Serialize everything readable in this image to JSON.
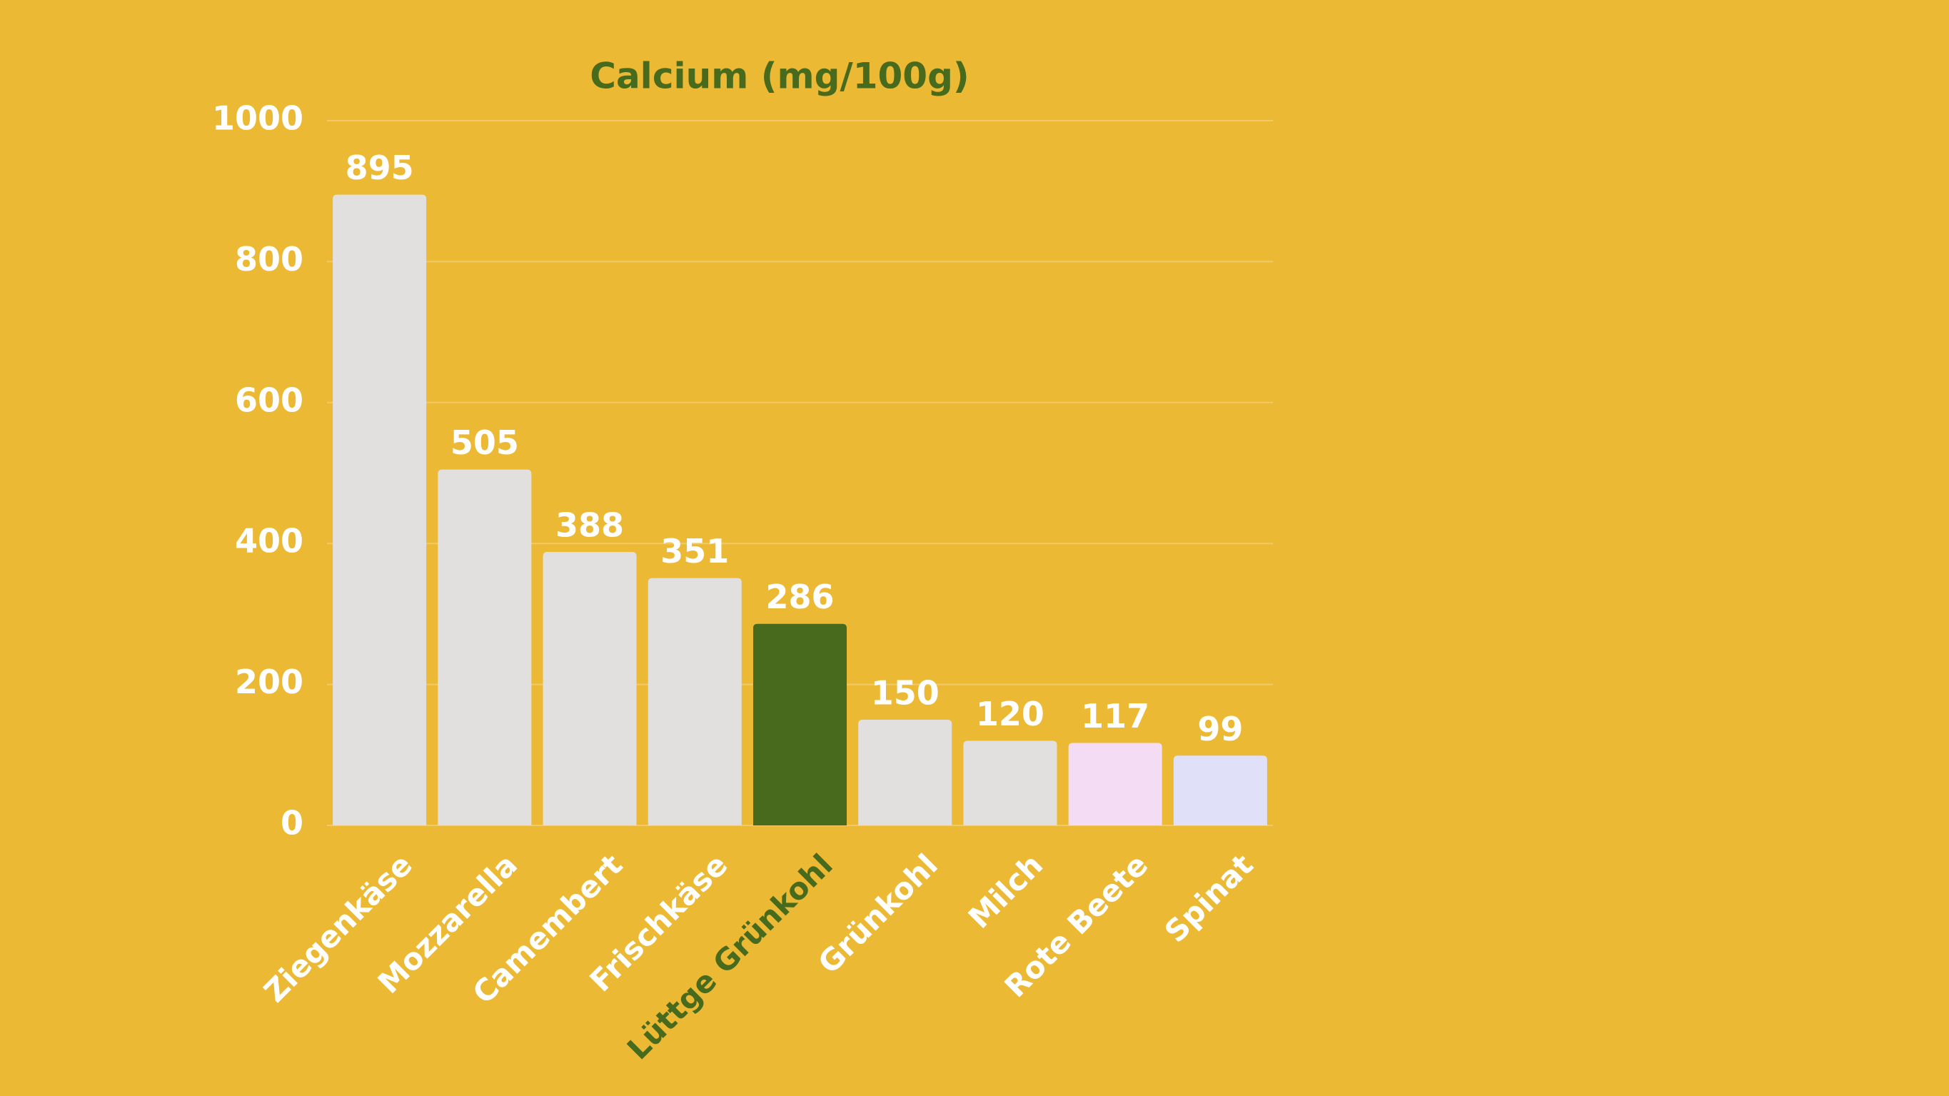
{
  "chart_data": {
    "type": "bar",
    "title": "Calcium (mg/100g)",
    "categories": [
      "Ziegenkäse",
      "Mozzarella",
      "Camembert",
      "Frischkäse",
      "Lüttge Grünkohl",
      "Grünkohl",
      "Milch",
      "Rote Beete",
      "Spinat"
    ],
    "values": [
      895,
      505,
      388,
      351,
      286,
      150,
      120,
      117,
      99
    ],
    "colors": [
      "#e2dfdf",
      "#e2dfdf",
      "#e2dfdf",
      "#e2dfdf",
      "#476a1c",
      "#e2dfdf",
      "#e2dfdf",
      "#f5dcf5",
      "#e0e0f8"
    ],
    "label_colors": [
      "#ffffff",
      "#ffffff",
      "#ffffff",
      "#ffffff",
      "#476a1c",
      "#ffffff",
      "#ffffff",
      "#ffffff",
      "#ffffff"
    ],
    "ylim": [
      0,
      1000
    ],
    "yticks": [
      0,
      200,
      400,
      600,
      800,
      1000
    ],
    "grid": true
  }
}
